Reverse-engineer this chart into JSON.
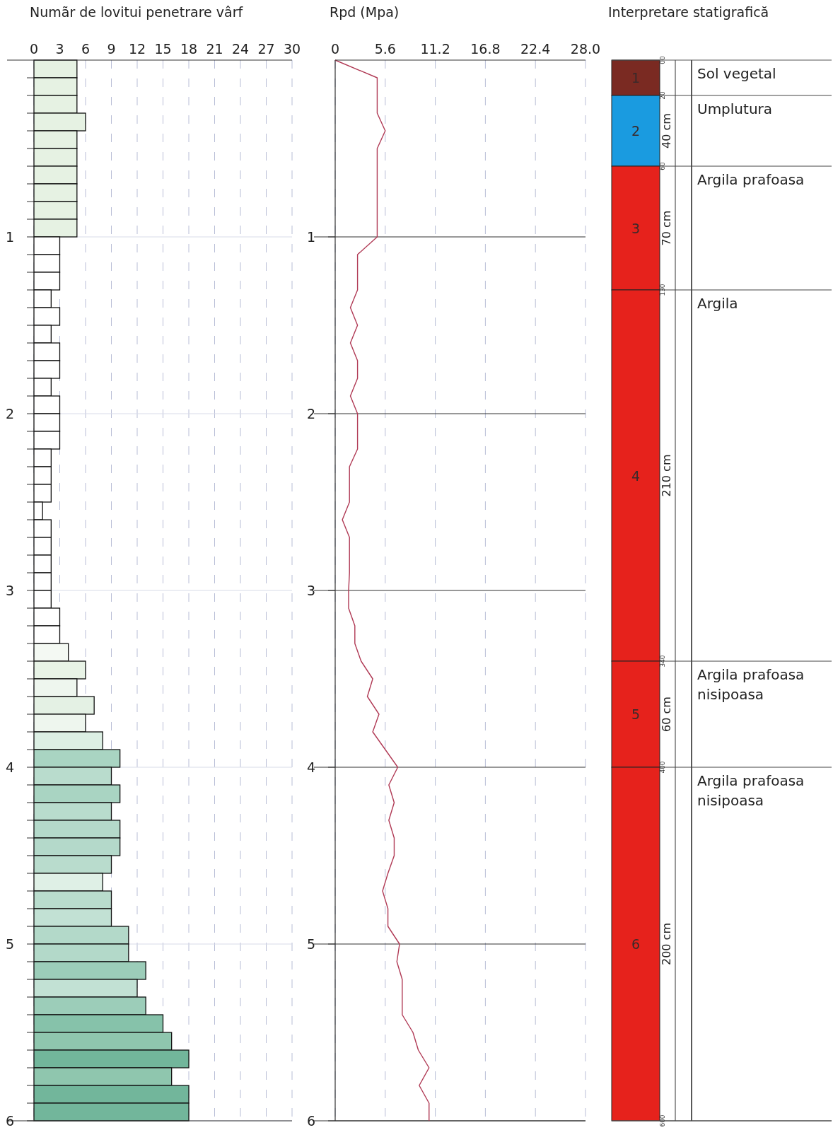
{
  "chart_data": [
    {
      "type": "bar",
      "orientation": "horizontal",
      "title": "Numãr de lovitui penetrare vârf",
      "grid": true,
      "x": [
        0.05,
        0.15,
        0.25,
        0.35,
        0.45,
        0.55,
        0.65,
        0.75,
        0.85,
        0.95,
        1.05,
        1.15,
        1.25,
        1.35,
        1.45,
        1.55,
        1.65,
        1.75,
        1.85,
        1.95,
        2.05,
        2.15,
        2.25,
        2.35,
        2.45,
        2.55,
        2.65,
        2.75,
        2.85,
        2.95,
        3.05,
        3.15,
        3.25,
        3.35,
        3.45,
        3.55,
        3.65,
        3.75,
        3.85,
        3.95,
        4.05,
        4.15,
        4.25,
        4.35,
        4.45,
        4.55,
        4.65,
        4.75,
        4.85,
        4.95,
        5.05,
        5.15,
        5.25,
        5.35,
        5.45,
        5.55,
        5.65,
        5.75,
        5.85,
        5.95
      ],
      "values": [
        5,
        5,
        5,
        6,
        5,
        5,
        5,
        5,
        5,
        5,
        3,
        3,
        3,
        2,
        3,
        2,
        3,
        3,
        2,
        3,
        3,
        3,
        2,
        2,
        2,
        1,
        2,
        2,
        2,
        2,
        2,
        3,
        3,
        4,
        6,
        5,
        7,
        6,
        8,
        10,
        9,
        10,
        9,
        10,
        10,
        9,
        8,
        9,
        9,
        11,
        11,
        13,
        12,
        13,
        15,
        16,
        18,
        16,
        18,
        18
      ],
      "colors": [
        "#e6f2e3",
        "#e6f2e3",
        "#e6f2e3",
        "#e6f2e3",
        "#e6f2e3",
        "#e6f2e3",
        "#e6f2e3",
        "#e6f2e3",
        "#e6f2e3",
        "#e6f2e3",
        "#ffffff",
        "#ffffff",
        "#ffffff",
        "#ffffff",
        "#ffffff",
        "#ffffff",
        "#ffffff",
        "#ffffff",
        "#ffffff",
        "#ffffff",
        "#ffffff",
        "#ffffff",
        "#ffffff",
        "#ffffff",
        "#ffffff",
        "#ffffff",
        "#ffffff",
        "#ffffff",
        "#ffffff",
        "#ffffff",
        "#ffffff",
        "#ffffff",
        "#ffffff",
        "#f4f9f3",
        "#e8f3e6",
        "#eef6ee",
        "#e4f1e4",
        "#eef6ee",
        "#dcefe4",
        "#a9d4c2",
        "#b9dccd",
        "#a9d4c2",
        "#b9dccd",
        "#b4d9ca",
        "#b4d9ca",
        "#b9dccd",
        "#dff0e6",
        "#b9dccd",
        "#c2e1d4",
        "#b3d9c9",
        "#b3d9c9",
        "#9ccdb9",
        "#c2e1d4",
        "#9ccdb9",
        "#86c2aa",
        "#8fc6ae",
        "#72b69b",
        "#8fc6ae",
        "#72b69b",
        "#72b69b"
      ],
      "xlim": [
        0,
        30
      ],
      "xticks": [
        0,
        3,
        6,
        9,
        12,
        15,
        18,
        21,
        24,
        27,
        30
      ],
      "ylim": [
        6,
        0
      ],
      "yticks": [
        {
          "value": 0.1,
          "label": null
        },
        {
          "value": 0.2,
          "label": null
        },
        {
          "value": 0.3,
          "label": null
        },
        {
          "value": 0.4,
          "label": null
        },
        {
          "value": 0.5,
          "label": null
        },
        {
          "value": 0.6,
          "label": null
        },
        {
          "value": 0.7,
          "label": null
        },
        {
          "value": 0.8,
          "label": null
        },
        {
          "value": 0.9,
          "label": null
        },
        1,
        {
          "value": 1.1,
          "label": null
        },
        {
          "value": 1.2,
          "label": null
        },
        {
          "value": 1.3,
          "label": null
        },
        {
          "value": 1.4,
          "label": null
        },
        {
          "value": 1.5,
          "label": null
        },
        {
          "value": 1.6,
          "label": null
        },
        {
          "value": 1.7,
          "label": null
        },
        {
          "value": 1.8,
          "label": null
        },
        {
          "value": 1.9,
          "label": null
        },
        2,
        {
          "value": 2.1,
          "label": null
        },
        {
          "value": 2.2,
          "label": null
        },
        {
          "value": 2.3,
          "label": null
        },
        {
          "value": 2.4,
          "label": null
        },
        {
          "value": 2.5,
          "label": null
        },
        {
          "value": 2.6,
          "label": null
        },
        {
          "value": 2.7,
          "label": null
        },
        {
          "value": 2.8,
          "label": null
        },
        {
          "value": 2.9,
          "label": null
        },
        3,
        {
          "value": 3.1,
          "label": null
        },
        {
          "value": 3.2,
          "label": null
        },
        {
          "value": 3.3,
          "label": null
        },
        {
          "value": 3.4,
          "label": null
        },
        {
          "value": 3.5,
          "label": null
        },
        {
          "value": 3.6,
          "label": null
        },
        {
          "value": 3.7,
          "label": null
        },
        {
          "value": 3.8,
          "label": null
        },
        {
          "value": 3.9,
          "label": null
        },
        4,
        {
          "value": 4.1,
          "label": null
        },
        {
          "value": 4.2,
          "label": null
        },
        {
          "value": 4.3,
          "label": null
        },
        {
          "value": 4.4,
          "label": null
        },
        {
          "value": 4.5,
          "label": null
        },
        {
          "value": 4.6,
          "label": null
        },
        {
          "value": 4.7,
          "label": null
        },
        {
          "value": 4.8,
          "label": null
        },
        {
          "value": 4.9,
          "label": null
        },
        5,
        {
          "value": 5.1,
          "label": null
        },
        {
          "value": 5.2,
          "label": null
        },
        {
          "value": 5.3,
          "label": null
        },
        {
          "value": 5.4,
          "label": null
        },
        {
          "value": 5.5,
          "label": null
        },
        {
          "value": 5.6,
          "label": null
        },
        {
          "value": 5.7,
          "label": null
        },
        {
          "value": 5.8,
          "label": null
        },
        {
          "value": 5.9,
          "label": null
        },
        6
      ]
    },
    {
      "type": "line",
      "orientation": "horizontal",
      "title": "Rpd (Mpa)",
      "grid": true,
      "color": "#b03a55",
      "x": [
        0,
        0.1,
        0.2,
        0.3,
        0.4,
        0.5,
        0.6,
        0.7,
        0.8,
        0.9,
        1,
        1.1,
        1.2,
        1.3,
        1.4,
        1.5,
        1.6,
        1.7,
        1.8,
        1.9,
        2,
        2.1,
        2.2,
        2.3,
        2.4,
        2.5,
        2.6,
        2.7,
        2.8,
        2.9,
        3,
        3.1,
        3.2,
        3.3,
        3.4,
        3.5,
        3.6,
        3.7,
        3.8,
        3.9,
        4,
        4.1,
        4.2,
        4.3,
        4.4,
        4.5,
        4.6,
        4.7,
        4.8,
        4.9,
        5,
        5.1,
        5.2,
        5.3,
        5.4,
        5.5,
        5.6,
        5.7,
        5.8,
        5.9,
        6
      ],
      "values": [
        0,
        4.7,
        4.7,
        4.7,
        5.6,
        4.7,
        4.7,
        4.7,
        4.7,
        4.7,
        4.7,
        2.5,
        2.5,
        2.5,
        1.7,
        2.5,
        1.7,
        2.5,
        2.5,
        1.7,
        2.5,
        2.5,
        2.5,
        1.6,
        1.6,
        1.6,
        0.8,
        1.6,
        1.6,
        1.6,
        1.5,
        1.5,
        2.2,
        2.2,
        2.9,
        4.2,
        3.6,
        4.9,
        4.2,
        5.6,
        7.0,
        6.0,
        6.6,
        6.0,
        6.6,
        6.6,
        5.9,
        5.3,
        5.9,
        5.9,
        7.2,
        6.9,
        7.5,
        7.5,
        7.5,
        8.7,
        9.3,
        10.5,
        9.4,
        10.5,
        10.5
      ],
      "xlim": [
        0,
        28
      ],
      "xticks": [
        0,
        5.6,
        11.2,
        16.8,
        22.4,
        {
          "value": 28,
          "label": "28.0"
        }
      ],
      "ylim": [
        6,
        0
      ],
      "yticks": [
        1,
        2,
        3,
        4,
        5,
        6
      ]
    },
    {
      "type": "bar",
      "stacked": true,
      "title": "Interpretare statigrafică",
      "categories": [
        null
      ],
      "legend": "right",
      "tick_labels": "y",
      "series": [
        {
          "name": "Sol vegetal",
          "color": "#7a2a22",
          "values": [
            20
          ],
          "value_labels": [
            null
          ]
        },
        {
          "name": "Umplutura",
          "color": "#1a9be0",
          "values": [
            40
          ],
          "value_labels": [
            "40 cm"
          ]
        },
        {
          "name": "Argila prafoasa",
          "color": "#e6221c",
          "values": [
            70
          ],
          "value_labels": [
            "70 cm"
          ]
        },
        {
          "name": "Argila",
          "color": "#e6221c",
          "values": [
            210
          ],
          "value_labels": [
            "210 cm"
          ]
        },
        {
          "name": "Argila prafoasa nisipoasa",
          "color": "#e6221c",
          "values": [
            60
          ],
          "value_labels": [
            "60 cm"
          ]
        },
        {
          "name": "Argila prafoasa nisipoasa",
          "color": "#e6221c",
          "values": [
            200
          ],
          "value_labels": [
            "200 cm"
          ]
        }
      ],
      "ylim": [
        600,
        0
      ],
      "yticks": [
        {
          "value": 0,
          "label": "00"
        },
        20,
        60,
        130,
        340,
        400,
        600
      ],
      "annotations": [
        "1",
        "2",
        "3",
        "4",
        "5",
        "6"
      ]
    }
  ]
}
